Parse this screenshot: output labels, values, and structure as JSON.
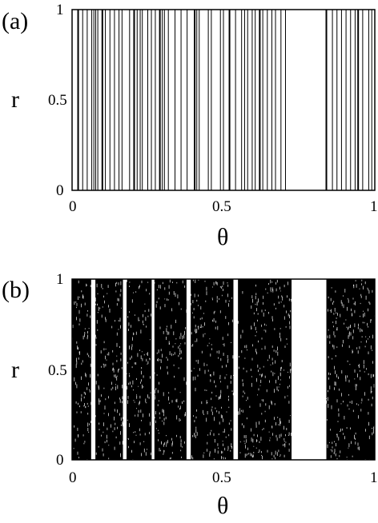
{
  "chart_data": [
    {
      "type": "scatter",
      "panel_label": "(a)",
      "xlabel": "θ",
      "ylabel": "r",
      "xlim": [
        0,
        1
      ],
      "ylim": [
        0,
        1
      ],
      "x_ticks": [
        "0",
        "0.5",
        "1"
      ],
      "y_ticks": [
        "0",
        "0.5",
        "1"
      ],
      "grid": false,
      "vertical_lines_theta": [
        0.02,
        0.035,
        0.05,
        0.065,
        0.072,
        0.078,
        0.085,
        0.1,
        0.11,
        0.125,
        0.14,
        0.155,
        0.165,
        0.19,
        0.205,
        0.215,
        0.225,
        0.232,
        0.25,
        0.262,
        0.275,
        0.29,
        0.298,
        0.305,
        0.318,
        0.34,
        0.36,
        0.38,
        0.405,
        0.412,
        0.42,
        0.45,
        0.46,
        0.49,
        0.5,
        0.52,
        0.54,
        0.56,
        0.57,
        0.58,
        0.595,
        0.605,
        0.62,
        0.63,
        0.645,
        0.66,
        0.672,
        0.69,
        0.705,
        0.84,
        0.86,
        0.875,
        0.89,
        0.905,
        0.92,
        0.935,
        0.945,
        0.96,
        0.98,
        0.99
      ]
    },
    {
      "type": "scatter",
      "panel_label": "(b)",
      "xlabel": "θ",
      "ylabel": "r",
      "xlim": [
        0,
        1
      ],
      "ylim": [
        0,
        1
      ],
      "x_ticks": [
        "0",
        "0.5",
        "1"
      ],
      "y_ticks": [
        "0",
        "0.5",
        "1"
      ],
      "grid": false,
      "dense_bands_theta": [
        [
          0.0,
          0.063
        ],
        [
          0.077,
          0.168
        ],
        [
          0.18,
          0.263
        ],
        [
          0.272,
          0.378
        ],
        [
          0.392,
          0.533
        ],
        [
          0.548,
          0.725
        ],
        [
          0.84,
          1.0
        ]
      ],
      "empty_gaps_theta": [
        [
          0.063,
          0.077
        ],
        [
          0.168,
          0.18
        ],
        [
          0.263,
          0.272
        ],
        [
          0.378,
          0.392
        ],
        [
          0.533,
          0.548
        ],
        [
          0.725,
          0.84
        ]
      ]
    }
  ]
}
